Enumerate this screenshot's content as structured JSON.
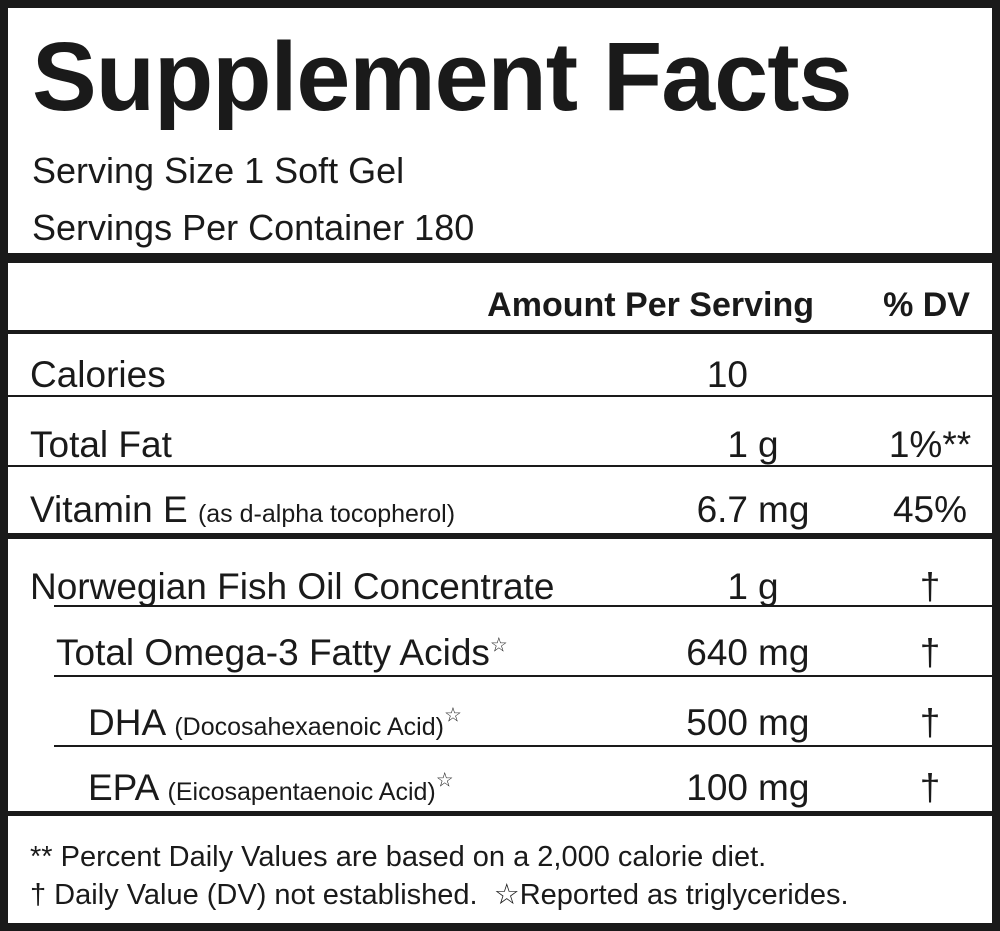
{
  "header": {
    "title": "Supplement Facts",
    "serving_size": "Serving Size 1 Soft Gel",
    "servings_per_container": "Servings Per Container 180"
  },
  "table": {
    "columns": [
      "Amount Per Serving",
      "% DV"
    ],
    "rows": [
      {
        "name": "Calories",
        "amount": "10"
      },
      {
        "name": "Total Fat",
        "amount": "1",
        "unit": "g",
        "dv": "1%**"
      },
      {
        "name": "Vitamin E",
        "note": "(as d-alpha tocopherol)",
        "amount": "6.7",
        "unit": "mg",
        "dv": "45%"
      },
      {
        "name": "Norwegian Fish Oil Concentrate",
        "amount": "1",
        "unit": "g",
        "dv": "†"
      },
      {
        "name": "Total Omega-3 Fatty Acids",
        "mark": "☆",
        "amount": "640",
        "unit": "mg",
        "dv": "†"
      },
      {
        "name": "DHA",
        "note": "(Docosahexaenoic Acid)",
        "mark": "☆",
        "amount": "500",
        "unit": "mg",
        "dv": "†"
      },
      {
        "name": "EPA",
        "note": "(Eicosapentaenoic Acid)",
        "mark": "☆",
        "amount": "100",
        "unit": "mg",
        "dv": "†"
      }
    ]
  },
  "footer": {
    "line1": "** Percent Daily Values are based on a 2,000 calorie diet.",
    "line2a": "† Daily Value (DV) not established.",
    "line2b": "☆Reported as triglycerides."
  }
}
